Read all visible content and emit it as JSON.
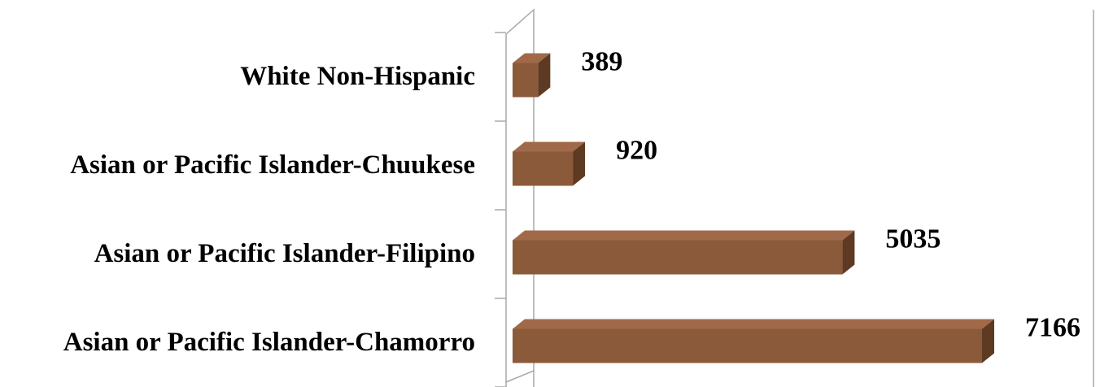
{
  "chart_data": {
    "type": "bar",
    "orientation": "horizontal",
    "three_d": true,
    "title": "",
    "xlabel": "",
    "ylabel": "",
    "categories": [
      "White Non-Hispanic",
      "Asian or Pacific Islander-Chuukese",
      "Asian or Pacific Islander-Filipino",
      "Asian or Pacific Islander-Chamorro"
    ],
    "values": [
      389,
      920,
      5035,
      7166
    ],
    "data_labels": [
      "389",
      "920",
      "5035",
      "7166"
    ],
    "xlim": [
      0,
      7166
    ],
    "grid": false,
    "legend": "none",
    "colors": {
      "bar_front": "#8B5A3A",
      "bar_top": "#A0694A",
      "bar_side": "#5E3A22",
      "axis": "#A8A8A8"
    }
  }
}
